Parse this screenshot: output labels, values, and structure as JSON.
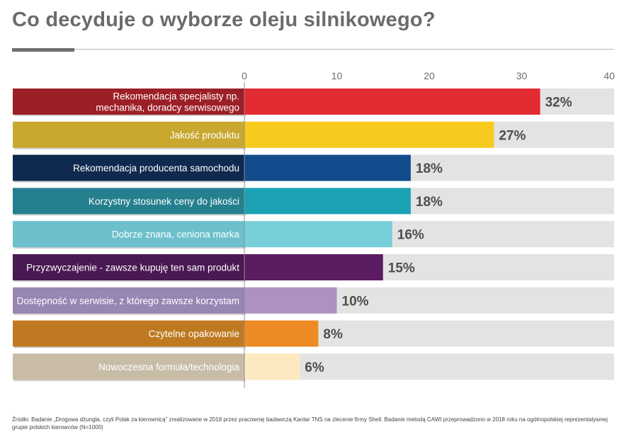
{
  "page": {
    "title": "Co decyduje o wyborze oleju silnikowego?",
    "source": "Źródło: Badanie „Drogowa dżungla, czyli Polak za kierownicą” zrealizowane w 2018 przez pracownię badawczą Kantar TNS na zlecenie firmy Shell. Badanie metodą CAWI przeprowadzono w 2018 roku na ogólnopolskiej reprezentatywnej grupie polskich kierowców (N=1000)"
  },
  "chart_data": {
    "type": "bar",
    "orientation": "horizontal",
    "title": "Co decyduje o wyborze oleju silnikowego?",
    "xlim": [
      0,
      40
    ],
    "ticks": [
      0,
      10,
      20,
      30,
      40
    ],
    "value_suffix": "%",
    "background_bar": true,
    "categories": [
      "Rekomendacja specjalisty np. mechanika, doradcy serwisowego",
      "Jakość produktu",
      "Rekomendacja producenta samochodu",
      "Korzystny stosunek ceny do jakości",
      "Dobrze znana, ceniona marka",
      "Przyzwyczajenie - zawsze kupuję ten sam produkt",
      "Dostępność w serwisie, z którego zawsze korzystam",
      "Czytelne opakowanie",
      "Nowoczesna formuła/technologia"
    ],
    "label_lines": [
      [
        "Rekomendacja specjalisty np.",
        "mechanika, doradcy serwisowego"
      ],
      [
        "Jakość produktu"
      ],
      [
        "Rekomendacja producenta samochodu"
      ],
      [
        "Korzystny stosunek ceny do jakości"
      ],
      [
        "Dobrze znana, ceniona marka"
      ],
      [
        "Przyzwyczajenie - zawsze kupuję ten sam produkt"
      ],
      [
        "Dostępność w serwisie, z którego zawsze korzystam"
      ],
      [
        "Czytelne opakowanie"
      ],
      [
        "Nowoczesna formuła/technologia"
      ]
    ],
    "values": [
      32,
      27,
      18,
      18,
      16,
      15,
      10,
      8,
      6
    ],
    "bar_colors": [
      "#e32b33",
      "#f7ca1d",
      "#134c8c",
      "#1ba3b5",
      "#79cfd9",
      "#5b1c62",
      "#ad91c1",
      "#ee8a24",
      "#fde9c0"
    ],
    "label_colors": [
      "#9c1f27",
      "#c9a830",
      "#10294e",
      "#24808f",
      "#6bc0cc",
      "#4a1852",
      "#9785b4",
      "#bf7a21",
      "#c9bca7"
    ],
    "track_color": "#e3e3e3"
  }
}
